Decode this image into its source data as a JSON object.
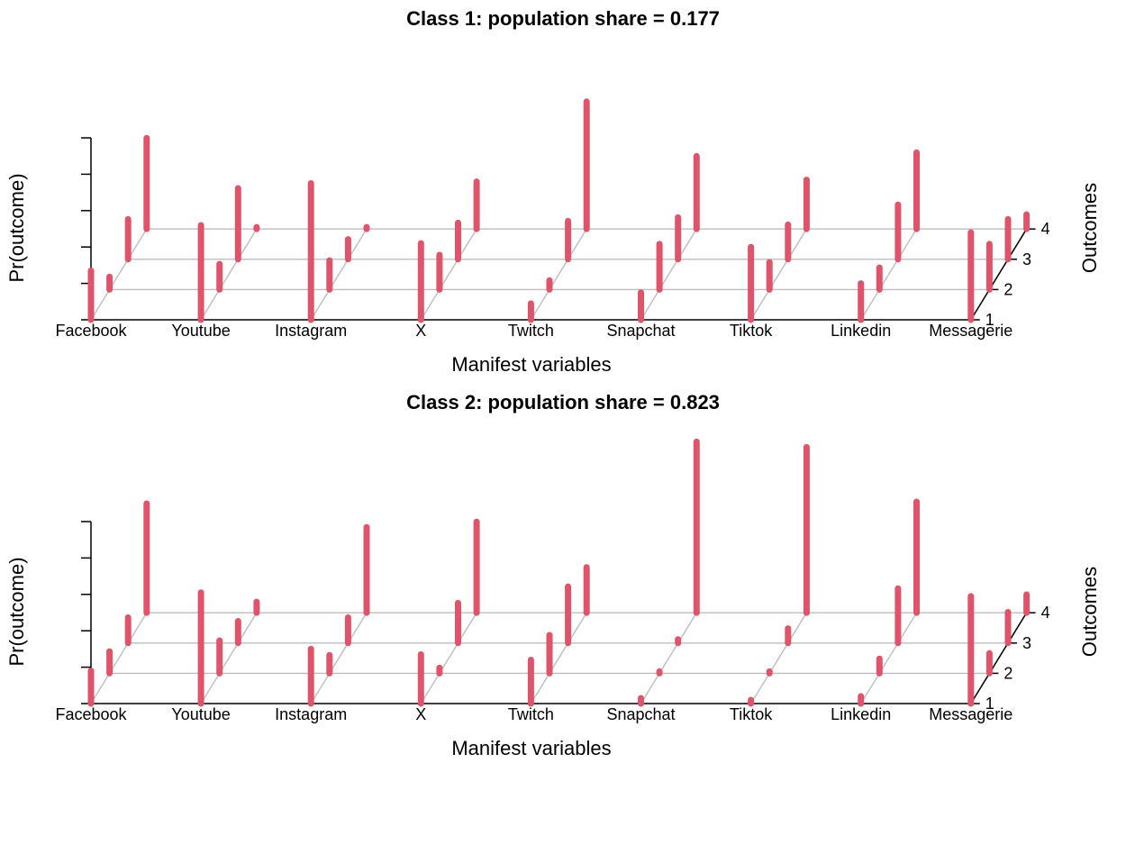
{
  "chart_data": [
    {
      "type": "bar",
      "title": "Class 1: population share = 0.177",
      "xlabel": "Manifest variables",
      "ylabel": "Pr(outcome)",
      "zlabel": "Outcomes",
      "categories": [
        "Facebook",
        "Youtube",
        "Instagram",
        "X",
        "Twitch",
        "Snapchat",
        "Tiktok",
        "Linkedin",
        "Messagerie"
      ],
      "outcomes": [
        "1",
        "2",
        "3",
        "4"
      ],
      "ylim": [
        0,
        1
      ],
      "color": "#DF536B",
      "values": [
        [
          0.27,
          0.07,
          0.22,
          0.5
        ],
        [
          0.52,
          0.14,
          0.39,
          0.01
        ],
        [
          0.75,
          0.16,
          0.11,
          0.01
        ],
        [
          0.42,
          0.19,
          0.2,
          0.26
        ],
        [
          0.09,
          0.05,
          0.21,
          0.7
        ],
        [
          0.15,
          0.25,
          0.23,
          0.4
        ],
        [
          0.4,
          0.15,
          0.19,
          0.27
        ],
        [
          0.2,
          0.12,
          0.3,
          0.42
        ],
        [
          0.48,
          0.25,
          0.22,
          0.08
        ]
      ]
    },
    {
      "type": "bar",
      "title": "Class 2: population share = 0.823",
      "xlabel": "Manifest variables",
      "ylabel": "Pr(outcome)",
      "zlabel": "Outcomes",
      "categories": [
        "Facebook",
        "Youtube",
        "Instagram",
        "X",
        "Twitch",
        "Snapchat",
        "Tiktok",
        "Linkedin",
        "Messagerie"
      ],
      "outcomes": [
        "1",
        "2",
        "3",
        "4"
      ],
      "ylim": [
        0,
        1
      ],
      "color": "#DF536B",
      "values": [
        [
          0.18,
          0.12,
          0.14,
          0.6
        ],
        [
          0.61,
          0.18,
          0.12,
          0.06
        ],
        [
          0.3,
          0.1,
          0.14,
          0.47
        ],
        [
          0.27,
          0.03,
          0.22,
          0.5
        ],
        [
          0.24,
          0.21,
          0.31,
          0.25
        ],
        [
          0.03,
          0.01,
          0.02,
          0.94
        ],
        [
          0.02,
          0.01,
          0.08,
          0.91
        ],
        [
          0.04,
          0.08,
          0.3,
          0.61
        ],
        [
          0.59,
          0.11,
          0.17,
          0.1
        ]
      ]
    }
  ]
}
